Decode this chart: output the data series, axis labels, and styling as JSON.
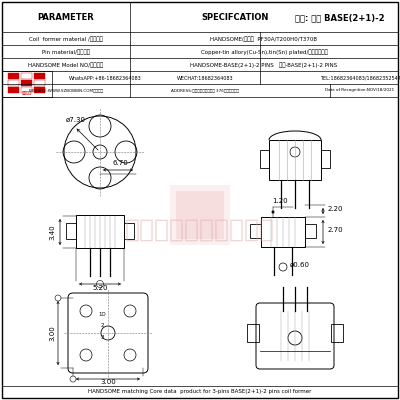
{
  "title": "品名: 焕升 BASE(2+1)-2",
  "param_title": "PARAMETER",
  "spec_title": "SPECIFCATION",
  "row1_param": "Coil  former material /线圈材料",
  "row1_spec": "HANDSOME(牌子）  PF30A/T200H0/T370B",
  "row2_param": "Pin material/端子材料",
  "row2_spec": "Copper-tin allory(Cu-Sn),tin(Sn) plated/铜锡合金镀锡",
  "row3_param": "HANDSOME Model NO/行方品名",
  "row3_spec": "HANDSOME-BASE(2+1)-2 PINS   型号-BASE(2+1)-2 PINS",
  "row4_left": "WhatsAPP:+86-18682364083",
  "row4_mid": "WECHAT:18682364083",
  "row4_right": "TEL:18682364083/18682352547",
  "row5_web": "WEBSITE:WWW.SZBOBBIN.COM（网品）",
  "row5_addr": "ADDRESS:东莞市石排下沙大道 376号焕升工业园",
  "row5_date": "Date of Recognition:NOV/18/2021",
  "footer": "HANDSOME matching Core data  product for 3-pins BASE(2+1)-2 pins coil former",
  "watermark": "东莞焕升塑料有限公司",
  "bg_color": "#ffffff",
  "line_color": "#000000",
  "watermark_color": "#ddaaaa",
  "dims": {
    "d1": "ø7.30",
    "d2": "6.70",
    "d3": "3.40",
    "d4": "5.20",
    "d5": "1.20",
    "d6": "2.20",
    "d7": "ø0.60",
    "d8": "2.70",
    "d9": "3.00",
    "d10": "3.00"
  }
}
